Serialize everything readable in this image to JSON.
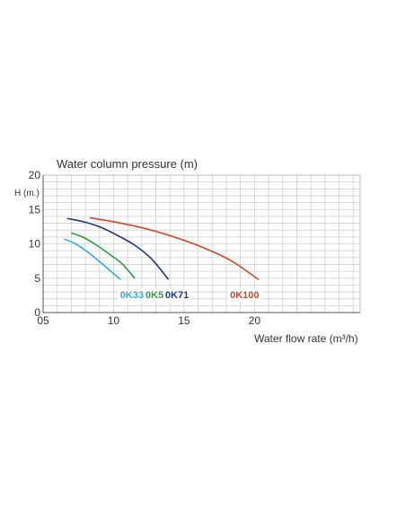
{
  "chart_data": {
    "type": "line",
    "title": "Water column pressure (m)",
    "ylabel": "H (m.)",
    "xlabel": "Water flow rate (m³/h)",
    "xlim": [
      5,
      27.5
    ],
    "ylim": [
      0,
      20
    ],
    "grid": true,
    "x_ticks": [
      {
        "value": 5,
        "label": "05"
      },
      {
        "value": 10,
        "label": "10"
      },
      {
        "value": 15,
        "label": "15"
      },
      {
        "value": 20,
        "label": "20"
      }
    ],
    "y_ticks": [
      {
        "value": 0,
        "label": "0"
      },
      {
        "value": 5,
        "label": "5"
      },
      {
        "value": 10,
        "label": "10"
      },
      {
        "value": 15,
        "label": "15"
      },
      {
        "value": 20,
        "label": "20"
      }
    ],
    "series": [
      {
        "name": "0K33",
        "color": "#36a9d8",
        "label_pos": [
          11.3,
          2.1
        ],
        "x": [
          6.5,
          7.3,
          8.1,
          8.9,
          9.7,
          10.5
        ],
        "y": [
          10.7,
          10.0,
          8.9,
          7.6,
          6.2,
          4.8
        ]
      },
      {
        "name": "0K51",
        "color": "#2e9b48",
        "label_pos": [
          13.1,
          2.1
        ],
        "x": [
          7.0,
          7.9,
          8.8,
          9.7,
          10.6,
          11.5
        ],
        "y": [
          11.6,
          10.9,
          9.8,
          8.5,
          7.1,
          5.0
        ]
      },
      {
        "name": "0K71",
        "color": "#1e3a7a",
        "label_pos": [
          14.5,
          2.1
        ],
        "x": [
          6.7,
          7.9,
          9.1,
          10.3,
          11.5,
          12.7,
          13.9
        ],
        "y": [
          13.7,
          13.2,
          12.4,
          11.2,
          9.8,
          7.8,
          4.8
        ]
      },
      {
        "name": "0K100",
        "color": "#d2452b",
        "label_pos": [
          19.3,
          2.1
        ],
        "x": [
          8.3,
          10.3,
          12.3,
          14.3,
          16.3,
          18.3,
          20.3
        ],
        "y": [
          13.8,
          13.1,
          12.2,
          11.0,
          9.5,
          7.6,
          4.8
        ]
      }
    ]
  }
}
